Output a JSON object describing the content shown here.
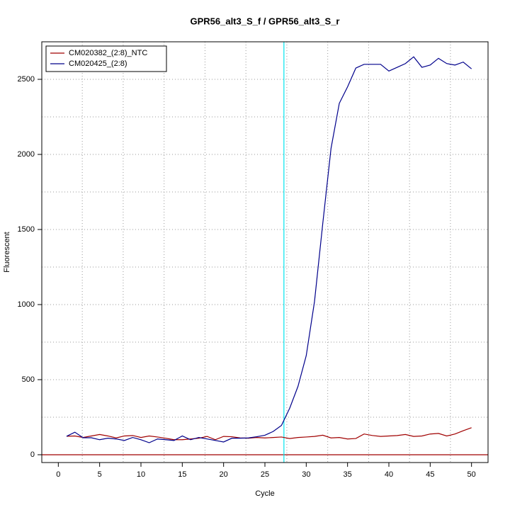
{
  "chart_data": {
    "type": "line",
    "title": "GPR56_alt3_S_f / GPR56_alt3_S_r",
    "x_label": "Cycle",
    "y_label": "Fluorescent",
    "x": [
      1,
      2,
      3,
      4,
      5,
      6,
      7,
      8,
      9,
      10,
      11,
      12,
      13,
      14,
      15,
      16,
      17,
      18,
      19,
      20,
      21,
      22,
      23,
      24,
      25,
      26,
      27,
      28,
      29,
      30,
      31,
      32,
      33,
      34,
      35,
      36,
      37,
      38,
      39,
      40,
      41,
      42,
      43,
      44,
      45,
      46,
      47,
      48,
      49,
      50
    ],
    "series": [
      {
        "name": "CM020382_(2:8)_NTC",
        "color": "#a00000",
        "values": [
          123,
          125,
          115,
          125,
          135,
          125,
          112,
          125,
          128,
          115,
          125,
          118,
          110,
          100,
          100,
          105,
          110,
          122,
          100,
          122,
          120,
          112,
          110,
          115,
          112,
          115,
          118,
          108,
          115,
          118,
          122,
          130,
          112,
          115,
          105,
          108,
          138,
          128,
          122,
          125,
          128,
          135,
          122,
          125,
          138,
          142,
          125,
          138,
          160,
          180
        ]
      },
      {
        "name": "CM020425_(2:8)",
        "color": "#00008b",
        "values": [
          123,
          150,
          113,
          113,
          100,
          110,
          105,
          95,
          115,
          100,
          80,
          105,
          100,
          95,
          125,
          100,
          115,
          105,
          95,
          85,
          110,
          110,
          112,
          120,
          130,
          155,
          195,
          310,
          455,
          660,
          1020,
          1540,
          2040,
          2340,
          2450,
          2575,
          2600,
          2600,
          2600,
          2555,
          2580,
          2605,
          2650,
          2580,
          2595,
          2640,
          2605,
          2595,
          2615,
          2570
        ]
      }
    ],
    "xlim": [
      -2,
      52
    ],
    "ylim": [
      -52,
      2750
    ],
    "xticks": [
      0,
      5,
      10,
      15,
      20,
      25,
      30,
      35,
      40,
      45,
      50
    ],
    "yticks": [
      0,
      500,
      1000,
      1500,
      2000,
      2500
    ],
    "x_grid": [
      2.9,
      7.85,
      12.8,
      17.75,
      22.7,
      27.65,
      32.6,
      37.55,
      42.5,
      47.45
    ],
    "y_grid": [
      250,
      500,
      750,
      1000,
      1250,
      1500,
      1750,
      2000,
      2250,
      2500
    ],
    "threshold": 0,
    "threshold_color": "#a00000",
    "ct_cycle": 27.3,
    "ct_color": "#00e5ee",
    "legend": "top-left"
  }
}
